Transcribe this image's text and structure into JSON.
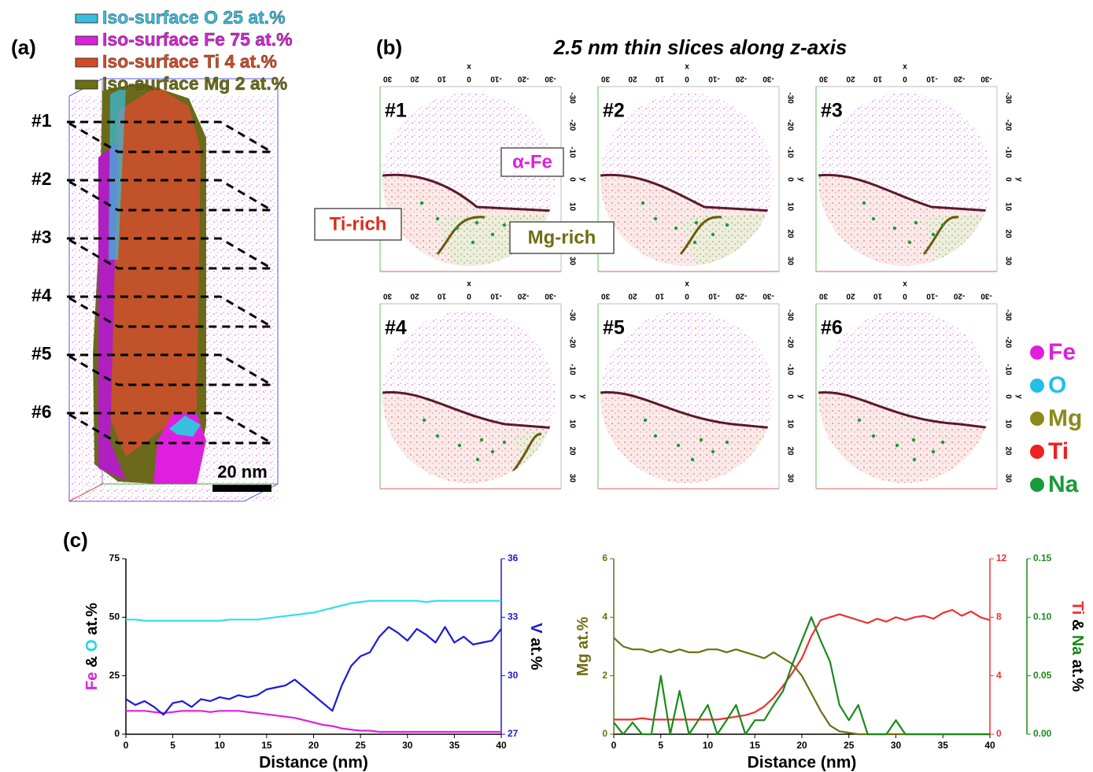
{
  "panel_a": {
    "label": "(a)",
    "legend": [
      {
        "text": "Iso-surface O 25 at.%",
        "color": "#38bfe0"
      },
      {
        "text": "Iso-surface Fe 75 at.%",
        "color": "#de1fde"
      },
      {
        "text": "Iso-surface Ti 4 at.%",
        "color": "#d64a22"
      },
      {
        "text": "Iso-surface Mg 2 at.%",
        "color": "#6e6e12"
      }
    ],
    "slices": [
      "#1",
      "#2",
      "#3",
      "#4",
      "#5",
      "#6"
    ],
    "scale_bar": "20 nm"
  },
  "panel_b": {
    "label": "(b)",
    "title": "2.5 nm thin slices along z-axis",
    "slices": [
      "#1",
      "#2",
      "#3",
      "#4",
      "#5",
      "#6"
    ],
    "axis_x_label": "x",
    "axis_y_label": "y",
    "ticks": [
      -30,
      -20,
      -10,
      0,
      10,
      20,
      30
    ],
    "annotations": [
      {
        "text": "α-Fe",
        "color": "#de1fde"
      },
      {
        "text": "Ti-rich",
        "color": "#d8301c"
      },
      {
        "text": "Mg-rich",
        "color": "#6e6e12"
      }
    ],
    "elements": [
      {
        "name": "Fe",
        "color": "#de1fde"
      },
      {
        "name": "O",
        "color": "#22c0e8"
      },
      {
        "name": "Mg",
        "color": "#8a8a1a"
      },
      {
        "name": "Ti",
        "color": "#ee2020"
      },
      {
        "name": "Na",
        "color": "#1a9a3a"
      }
    ]
  },
  "panel_c_label": "(c)",
  "chart_data": [
    {
      "type": "line",
      "xlabel": "Distance (nm)",
      "ylabel": [
        {
          "text": "Fe",
          "color": "#de1fde"
        },
        {
          "text": "&",
          "color": "#000000"
        },
        {
          "text": "O",
          "color": "#22d4ea"
        },
        {
          "text": "at.%",
          "color": "#000000"
        }
      ],
      "y2label": [
        {
          "text": "V",
          "color": "#1a1ad8"
        },
        {
          "text": "at.%",
          "color": "#000000"
        }
      ],
      "x": [
        0,
        1,
        2,
        3,
        4,
        5,
        6,
        7,
        8,
        9,
        10,
        11,
        12,
        13,
        14,
        15,
        16,
        17,
        18,
        19,
        20,
        21,
        22,
        23,
        24,
        25,
        26,
        27,
        28,
        29,
        30,
        31,
        32,
        33,
        34,
        35,
        36,
        37,
        38,
        39,
        40
      ],
      "xlim": [
        0,
        40
      ],
      "xticks": [
        0,
        5,
        10,
        15,
        20,
        25,
        30,
        35,
        40
      ],
      "ylim": [
        0,
        75
      ],
      "yticks": [
        0,
        25,
        50,
        75
      ],
      "y2lim": [
        27,
        36
      ],
      "y2ticks": [
        27,
        30,
        33,
        36
      ],
      "series": [
        {
          "color": "#de1fde",
          "values": [
            10,
            10,
            10,
            9.5,
            9,
            9.5,
            10,
            10,
            10,
            9.5,
            10,
            10,
            10,
            9.5,
            9,
            8.5,
            8,
            7.5,
            7,
            6,
            5,
            4,
            3.5,
            2.5,
            2,
            1.5,
            1.5,
            1,
            1,
            1,
            1,
            1,
            1,
            1,
            1,
            1,
            1,
            1,
            1,
            1,
            1
          ]
        },
        {
          "color": "#33ddee",
          "values": [
            49,
            49,
            48.5,
            48.5,
            48.5,
            48.5,
            48.5,
            48.5,
            48.5,
            48.5,
            48.5,
            49,
            49,
            49,
            49,
            49.5,
            50,
            50.5,
            51,
            51.5,
            52,
            53,
            54,
            55,
            56,
            56.5,
            57,
            57,
            57,
            57,
            57,
            57,
            56.5,
            57,
            57,
            57,
            57,
            57,
            57,
            57,
            57
          ]
        },
        {
          "color": "#1a1ad8",
          "axis": "y2",
          "values": [
            28.8,
            28.5,
            28.7,
            28.4,
            28,
            28.6,
            28.7,
            28.4,
            28.8,
            28.7,
            28.9,
            28.8,
            29,
            28.9,
            29,
            29.3,
            29.4,
            29.5,
            29.8,
            29.4,
            29,
            28.6,
            28.2,
            29.5,
            30.5,
            31,
            31.2,
            32,
            32.5,
            32.2,
            31.8,
            32.4,
            32.1,
            31.7,
            32.5,
            31.7,
            32,
            31.6,
            31.7,
            31.8,
            32.4
          ]
        }
      ]
    },
    {
      "type": "line",
      "xlabel": "Distance (nm)",
      "ylabel": [
        {
          "text": "Mg",
          "color": "#6e6e12"
        },
        {
          "text": "at.%",
          "color": "#6e6e12"
        }
      ],
      "y2label": [
        {
          "text": "Ti",
          "color": "#ee3030"
        },
        {
          "text": "&",
          "color": "#000000"
        },
        {
          "text": "Na",
          "color": "#1a8a1a"
        },
        {
          "text": "at.%",
          "color": "#000000"
        }
      ],
      "x": [
        0,
        1,
        2,
        3,
        4,
        5,
        6,
        7,
        8,
        9,
        10,
        11,
        12,
        13,
        14,
        15,
        16,
        17,
        18,
        19,
        20,
        21,
        22,
        23,
        24,
        25,
        26,
        27,
        28,
        29,
        30,
        31,
        32,
        33,
        34,
        35,
        36,
        37,
        38,
        39,
        40
      ],
      "xlim": [
        0,
        40
      ],
      "xticks": [
        0,
        5,
        10,
        15,
        20,
        25,
        30,
        35,
        40
      ],
      "ylim": [
        0,
        6
      ],
      "yticks": [
        0,
        2,
        4,
        6
      ],
      "y2lim": [
        0,
        12
      ],
      "y2ticks": [
        0,
        4,
        8,
        12
      ],
      "y3lim": [
        0,
        0.15
      ],
      "y3ticks": [
        {
          "value": 0,
          "label": "0.00"
        },
        0.05,
        {
          "value": 0.1,
          "label": "0.10"
        },
        0.15
      ],
      "series": [
        {
          "color": "#6e6e12",
          "values": [
            3.3,
            3.0,
            2.9,
            2.9,
            2.8,
            2.9,
            2.8,
            2.9,
            2.8,
            2.8,
            2.9,
            2.9,
            2.8,
            2.9,
            2.8,
            2.7,
            2.6,
            2.8,
            2.6,
            2.4,
            2.0,
            1.4,
            0.8,
            0.3,
            0.1,
            0.05,
            0,
            0,
            0,
            0,
            0,
            0,
            0,
            0,
            0,
            0,
            0,
            0,
            0,
            0,
            0
          ]
        },
        {
          "color": "#ee3030",
          "axis": "y2",
          "values": [
            1,
            1,
            1,
            1.1,
            1,
            1,
            1,
            1,
            1,
            1,
            1,
            1,
            1.1,
            1.2,
            1.3,
            1.5,
            1.9,
            2.5,
            3.3,
            4.2,
            5.2,
            6.7,
            7.8,
            8,
            8.2,
            8,
            7.8,
            7.6,
            7.9,
            7.7,
            8,
            7.8,
            8,
            8.1,
            7.9,
            8.3,
            8.5,
            8.1,
            8.4,
            8,
            7.8
          ]
        },
        {
          "color": "#1a8a1a",
          "axis": "y3",
          "values": [
            0.01,
            0,
            0.01,
            0,
            0,
            0.05,
            0,
            0.037,
            0,
            0.012,
            0.025,
            0,
            0.012,
            0.025,
            0,
            0.012,
            0.012,
            0.025,
            0.037,
            0.06,
            0.08,
            0.1,
            0.08,
            0.062,
            0.025,
            0.012,
            0.025,
            0,
            0,
            0,
            0.012,
            0,
            0,
            0,
            0,
            0,
            0,
            0,
            0,
            0,
            0
          ]
        }
      ]
    }
  ]
}
